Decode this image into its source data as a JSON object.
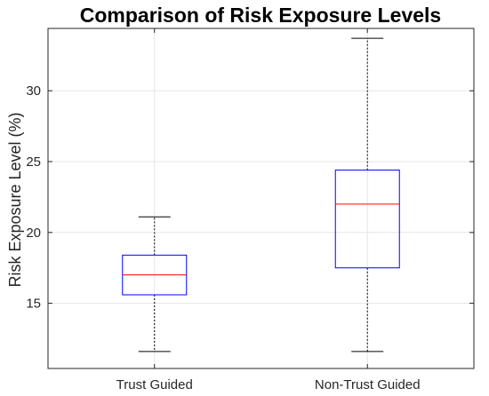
{
  "chart_data": {
    "type": "box",
    "title": "Comparison of Risk Exposure Levels",
    "xlabel": "",
    "ylabel": "Risk Exposure Level (%)",
    "ylim": [
      10.4,
      34.4
    ],
    "yticks": [
      15,
      20,
      25,
      30
    ],
    "grid": true,
    "categories": [
      "Trust Guided",
      "Non-Trust Guided"
    ],
    "boxes": [
      {
        "category": "Trust Guided",
        "min": 11.6,
        "q1": 15.6,
        "median": 17.0,
        "q3": 18.4,
        "max": 21.1
      },
      {
        "category": "Non-Trust Guided",
        "min": 11.6,
        "q1": 17.5,
        "median": 22.0,
        "q3": 24.4,
        "max": 33.7
      }
    ],
    "colors": {
      "box": "#0000ff",
      "median": "#ff0000",
      "whisker": "#000000",
      "grid": "#e6e6e6",
      "axis": "#262626"
    }
  }
}
